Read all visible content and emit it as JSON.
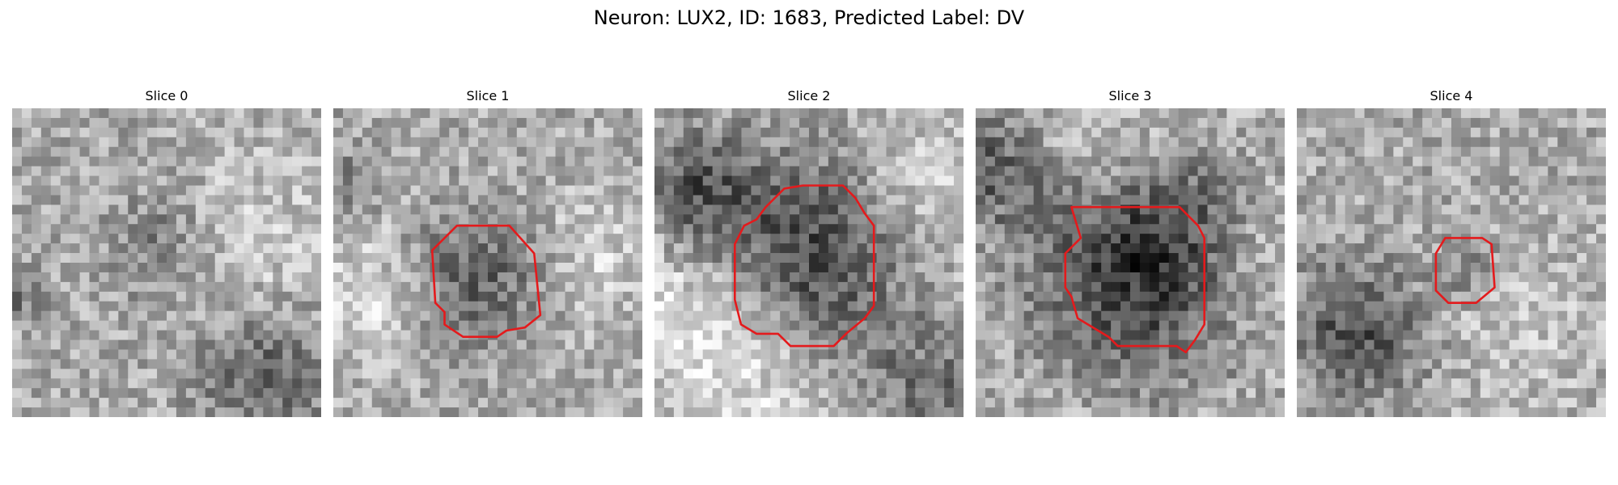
{
  "figure": {
    "suptitle": "Neuron: LUX2, ID: 1683, Predicted Label: DV",
    "outline_color": "#e41a1c",
    "slices": [
      {
        "title": "Slice 0",
        "has_roi": false
      },
      {
        "title": "Slice 1",
        "has_roi": true
      },
      {
        "title": "Slice 2",
        "has_roi": true
      },
      {
        "title": "Slice 3",
        "has_roi": true
      },
      {
        "title": "Slice 4",
        "has_roi": true
      }
    ]
  }
}
